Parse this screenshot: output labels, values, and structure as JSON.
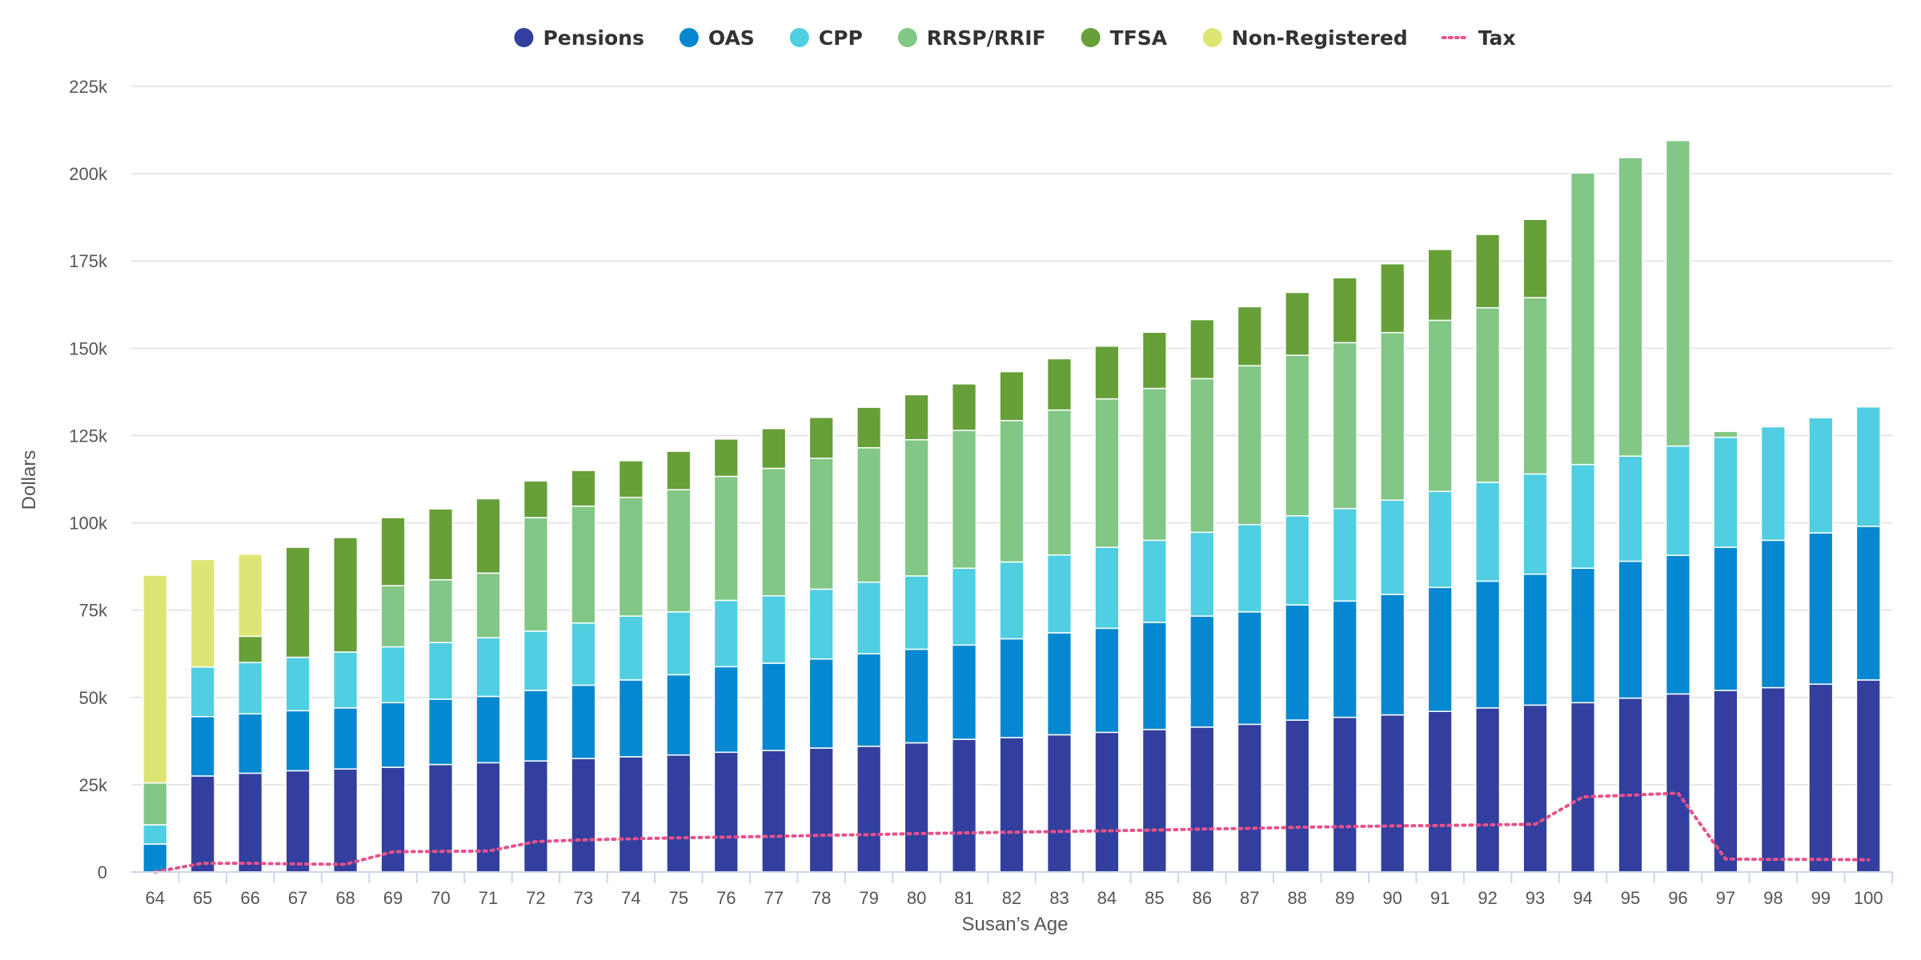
{
  "chart_data": {
    "type": "bar",
    "stacked": true,
    "xlabel": "Susan’s Age",
    "ylabel": "Dollars",
    "ylim": [
      0,
      225000
    ],
    "yticks": [
      0,
      25000,
      50000,
      75000,
      100000,
      125000,
      150000,
      175000,
      200000,
      225000
    ],
    "ytick_labels": [
      "0",
      "25k",
      "50k",
      "75k",
      "100k",
      "125k",
      "150k",
      "175k",
      "200k",
      "225k"
    ],
    "grid": true,
    "legend_position": "top-center",
    "categories": [
      "64",
      "65",
      "66",
      "67",
      "68",
      "69",
      "70",
      "71",
      "72",
      "73",
      "74",
      "75",
      "76",
      "77",
      "78",
      "79",
      "80",
      "81",
      "82",
      "83",
      "84",
      "85",
      "86",
      "87",
      "88",
      "89",
      "90",
      "91",
      "92",
      "93",
      "94",
      "95",
      "96",
      "97",
      "98",
      "99",
      "100"
    ],
    "series": [
      {
        "name": "Pensions",
        "color": "#333f9e",
        "values": [
          0,
          27500,
          28300,
          29000,
          29500,
          30000,
          30800,
          31300,
          31800,
          32500,
          33000,
          33500,
          34300,
          34800,
          35500,
          36000,
          37000,
          38000,
          38500,
          39300,
          40000,
          40800,
          41500,
          42300,
          43500,
          44300,
          45000,
          46000,
          47000,
          47800,
          48500,
          49800,
          51000,
          52000,
          52800,
          53800,
          55000
        ]
      },
      {
        "name": "OAS",
        "color": "#0588d1",
        "values": [
          8000,
          17000,
          17000,
          17200,
          17500,
          18500,
          18700,
          19000,
          20200,
          21000,
          22000,
          23000,
          24500,
          25000,
          25500,
          26500,
          26800,
          27000,
          28300,
          29200,
          29800,
          30700,
          31800,
          32200,
          33000,
          33300,
          34500,
          35500,
          36300,
          37500,
          38500,
          39200,
          39700,
          41000,
          42200,
          43300,
          44000
        ]
      },
      {
        "name": "CPP",
        "color": "#4fcfe1",
        "values": [
          5500,
          14200,
          14700,
          15300,
          16000,
          16000,
          16200,
          16800,
          17000,
          17800,
          18300,
          18000,
          19000,
          19300,
          20000,
          20500,
          21000,
          22000,
          22000,
          22300,
          23200,
          23500,
          24000,
          25000,
          25500,
          26500,
          27000,
          27500,
          28300,
          28700,
          29700,
          30100,
          31300,
          31500,
          32500,
          33000,
          34200
        ]
      },
      {
        "name": "RRSP/RRIF",
        "color": "#82c785",
        "values": [
          12000,
          0,
          0,
          0,
          0,
          17500,
          18000,
          18500,
          32500,
          33500,
          34000,
          35000,
          35500,
          36500,
          37500,
          38500,
          39000,
          39500,
          40500,
          41500,
          42500,
          43500,
          44000,
          45500,
          46000,
          47500,
          48000,
          49000,
          50000,
          50500,
          83500,
          85500,
          87500,
          1700,
          0,
          0,
          0
        ]
      },
      {
        "name": "TFSA",
        "color": "#679f39",
        "values": [
          0,
          0,
          7500,
          31500,
          32800,
          19500,
          20300,
          21300,
          10500,
          10200,
          10500,
          11000,
          10700,
          11400,
          11700,
          11600,
          12900,
          13300,
          14000,
          14700,
          15100,
          16100,
          16900,
          16900,
          18000,
          18600,
          19700,
          20300,
          21000,
          22400,
          0,
          0,
          0,
          0,
          0,
          0,
          0
        ]
      },
      {
        "name": "Non-Registered",
        "color": "#dde675",
        "values": [
          59500,
          30800,
          23500,
          0,
          0,
          0,
          0,
          0,
          0,
          0,
          0,
          0,
          0,
          0,
          0,
          0,
          0,
          0,
          0,
          0,
          0,
          0,
          0,
          0,
          0,
          0,
          0,
          0,
          0,
          0,
          0,
          0,
          0,
          0,
          0,
          0,
          0
        ]
      }
    ],
    "line_series": {
      "name": "Tax",
      "color": "#e8528b",
      "style": "dotted",
      "values": [
        0,
        2500,
        2500,
        2300,
        2200,
        5800,
        5900,
        6000,
        8700,
        9200,
        9500,
        9800,
        10000,
        10200,
        10500,
        10700,
        11000,
        11200,
        11400,
        11600,
        11800,
        12000,
        12300,
        12500,
        12800,
        13000,
        13200,
        13300,
        13500,
        13700,
        21500,
        22000,
        22600,
        3700,
        3600,
        3600,
        3500
      ]
    }
  }
}
